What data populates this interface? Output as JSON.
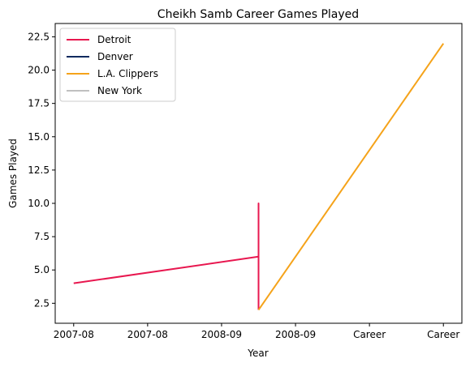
{
  "chart_data": {
    "type": "line",
    "title": "Cheikh Samb Career Games Played",
    "xlabel": "Year",
    "ylabel": "Games Played",
    "xtick_labels": [
      "2007-08",
      "2007-08",
      "2008-09",
      "2008-09",
      "Career",
      "Career"
    ],
    "xlim": [
      -0.25,
      5.25
    ],
    "ylim": [
      1.0,
      23.5
    ],
    "yticks": [
      2.5,
      5.0,
      7.5,
      10.0,
      12.5,
      15.0,
      17.5,
      20.0,
      22.5
    ],
    "ytick_labels": [
      "2.5",
      "5.0",
      "7.5",
      "10.0",
      "12.5",
      "15.0",
      "17.5",
      "20.0",
      "22.5"
    ],
    "legend_position": "upper-left",
    "series": [
      {
        "name": "Detroit",
        "color": "#e8174f",
        "points": [
          [
            0,
            4
          ],
          [
            2.5,
            6
          ],
          [
            2.5,
            10
          ],
          [
            2.5,
            2
          ]
        ]
      },
      {
        "name": "Denver",
        "color": "#0d2a5e",
        "points": []
      },
      {
        "name": "L.A. Clippers",
        "color": "#f5a31a",
        "points": [
          [
            2.5,
            2
          ],
          [
            5,
            22
          ]
        ]
      },
      {
        "name": "New York",
        "color": "#c0c0c0",
        "points": []
      }
    ]
  }
}
